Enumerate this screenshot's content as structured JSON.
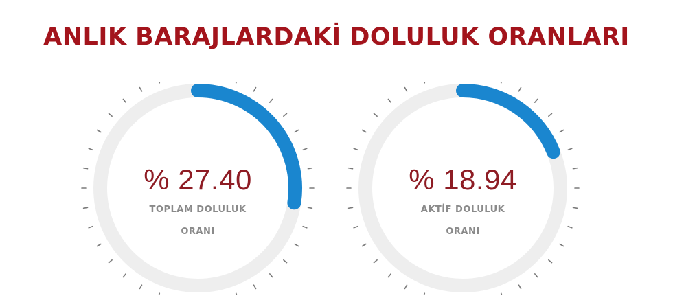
{
  "title": "ANLIK BARAJLARDAKİ DOLULUK ORANLARI",
  "colors": {
    "title": "#a3141c",
    "value": "#8e1c24",
    "arc": "#1a86cf",
    "track": "#eeeeee",
    "tick": "#7a7a7a",
    "label": "#8a8a8a"
  },
  "gauges": [
    {
      "value_text": "% 27.40",
      "percent": 27.4,
      "label_line1": "TOPLAM DOLULUK",
      "label_line2": "ORANI"
    },
    {
      "value_text": "% 18.94",
      "percent": 18.94,
      "label_line1": "AKTİF DOLULUK",
      "label_line2": "ORANI"
    }
  ]
}
